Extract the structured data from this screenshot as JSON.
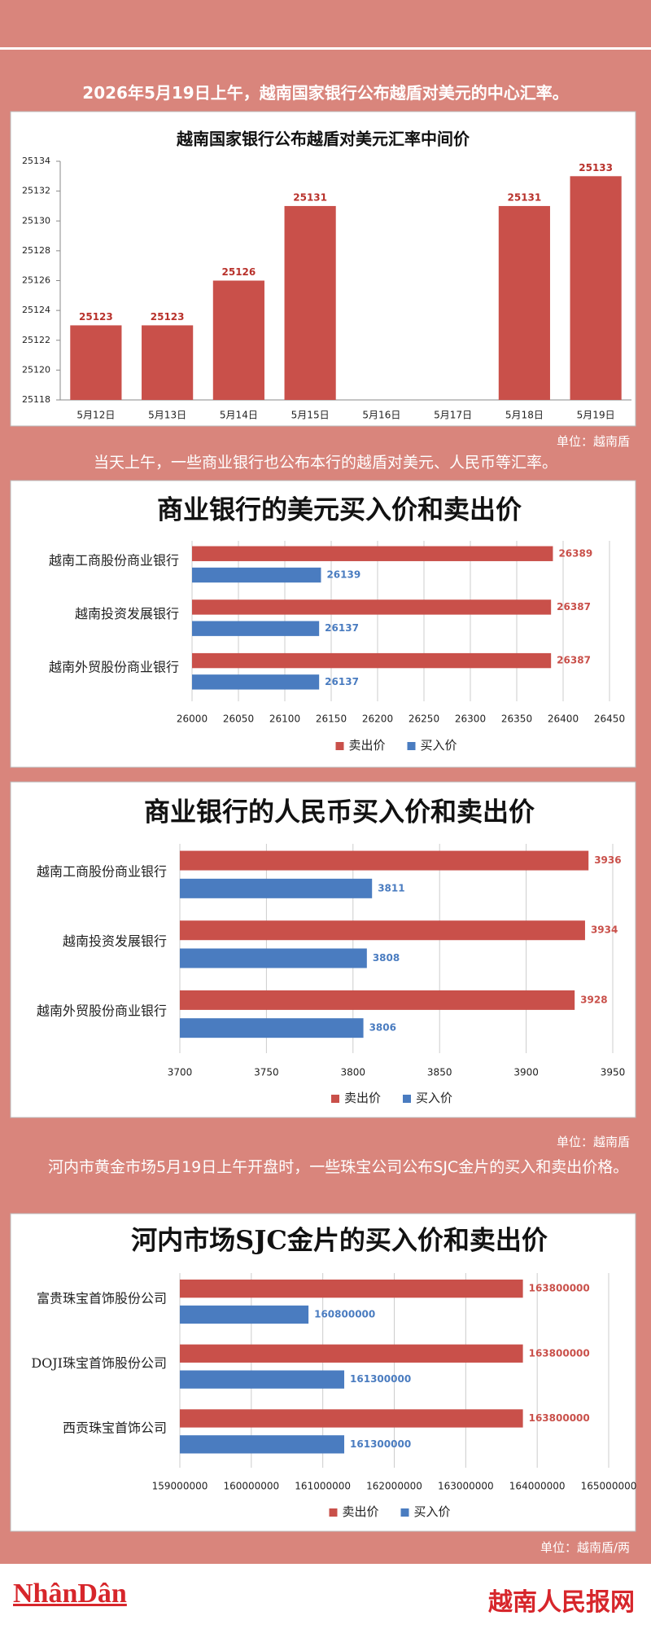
{
  "texts": {
    "intro_1": "2026年5月19日上午，越南国家银行公布越盾对美元的中心汇率。",
    "unit_1": "单位：越南盾",
    "intro_2": "当天上午，一些商业银行也公布本行的越盾对美元、人民币等汇率。",
    "unit_2": "单位：越南盾",
    "intro_3": "河内市黄金市场5月19日上午开盘时，一些珠宝公司公布SJC金片的买入和卖出价格。",
    "unit_3": "单位：越南盾/两"
  },
  "footer": {
    "logo": "NhânDân",
    "site": "越南人民报网"
  },
  "chart_data": [
    {
      "type": "bar",
      "title": "越南国家银行公布越盾对美元汇率中间价",
      "categories": [
        "5月12日",
        "5月13日",
        "5月14日",
        "5月15日",
        "5月16日",
        "5月17日",
        "5月18日",
        "5月19日"
      ],
      "values": [
        25123,
        25123,
        25126,
        25131,
        null,
        null,
        25131,
        25133
      ],
      "color": "#c9504a",
      "ylim": [
        25118,
        25134
      ],
      "yticks": [
        25118,
        25120,
        25122,
        25124,
        25126,
        25128,
        25130,
        25132,
        25134
      ],
      "grid": false
    },
    {
      "type": "horizontal_bar",
      "title": "商业银行的美元买入价和卖出价",
      "categories": [
        "越南工商股份商业银行",
        "越南投资发展银行",
        "越南外贸股份商业银行"
      ],
      "series": [
        {
          "name": "卖出价",
          "color": "#c9504a",
          "values": [
            26389,
            26387,
            26387
          ]
        },
        {
          "name": "买入价",
          "color": "#4a7cc0",
          "values": [
            26139,
            26137,
            26137
          ]
        }
      ],
      "xlim": [
        26000,
        26450
      ],
      "xticks": [
        26000,
        26050,
        26100,
        26150,
        26200,
        26250,
        26300,
        26350,
        26400,
        26450
      ],
      "grid": true
    },
    {
      "type": "horizontal_bar",
      "title": "商业银行的人民币买入价和卖出价",
      "categories": [
        "越南工商股份商业银行",
        "越南投资发展银行",
        "越南外贸股份商业银行"
      ],
      "series": [
        {
          "name": "卖出价",
          "color": "#c9504a",
          "values": [
            3936,
            3934,
            3928
          ]
        },
        {
          "name": "买入价",
          "color": "#4a7cc0",
          "values": [
            3811,
            3808,
            3806
          ]
        }
      ],
      "xlim": [
        3700,
        3950
      ],
      "xticks": [
        3700,
        3750,
        3800,
        3850,
        3900,
        3950
      ],
      "grid": true
    },
    {
      "type": "horizontal_bar",
      "title": "河内市场SJC金片的买入价和卖出价",
      "categories": [
        "富贵珠宝首饰股份公司",
        "DOJI珠宝首饰股份公司",
        "西贡珠宝首饰公司"
      ],
      "series": [
        {
          "name": "卖出价",
          "color": "#c9504a",
          "values": [
            163800000,
            163800000,
            163800000
          ]
        },
        {
          "name": "买入价",
          "color": "#4a7cc0",
          "values": [
            160800000,
            161300000,
            161300000
          ]
        }
      ],
      "xlim": [
        159000000,
        165000000
      ],
      "xticks": [
        159000000,
        160000000,
        161000000,
        162000000,
        163000000,
        164000000,
        165000000
      ],
      "grid": true
    }
  ]
}
